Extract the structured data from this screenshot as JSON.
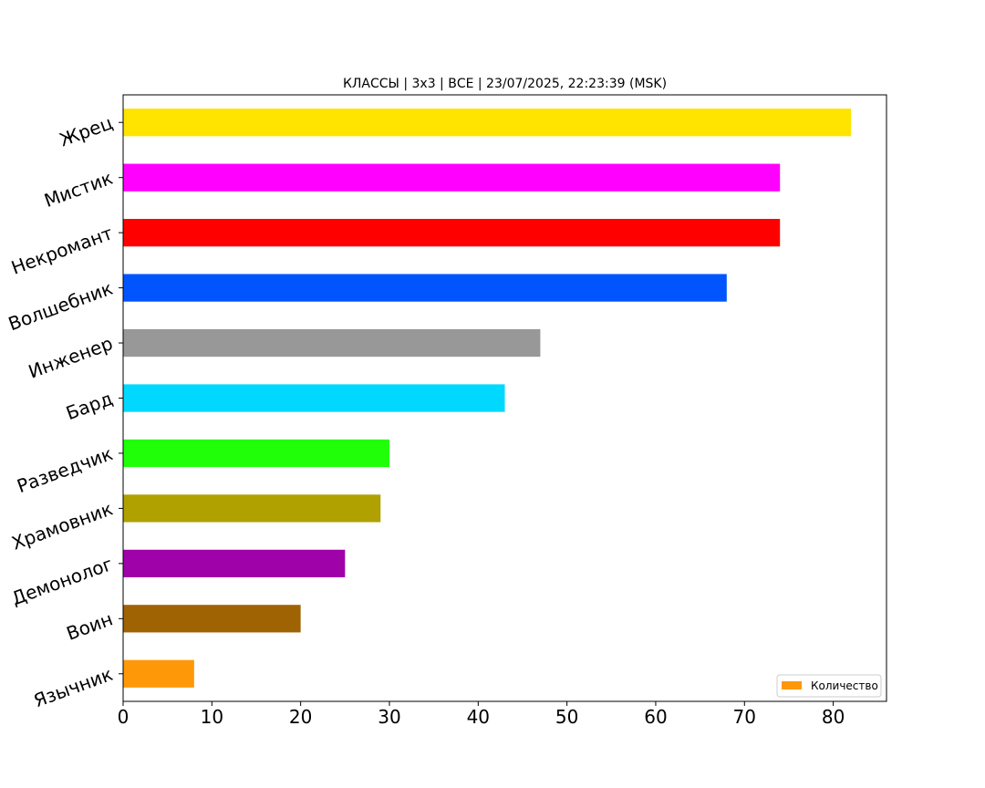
{
  "chart_data": {
    "type": "bar",
    "orientation": "horizontal",
    "title": "КЛАССЫ | 3x3 | ВСЕ | 23/07/2025, 22:23:39 (MSK)",
    "xlabel": "",
    "ylabel": "",
    "categories": [
      "Язычник",
      "Воин",
      "Демонолог",
      "Храмовник",
      "Разведчик",
      "Бард",
      "Инженер",
      "Волшебник",
      "Некромант",
      "Мистик",
      "Жрец"
    ],
    "values": [
      8,
      20,
      25,
      29,
      30,
      43,
      47,
      68,
      74,
      74,
      82
    ],
    "colors": [
      "#ff9808",
      "#a06304",
      "#a002aa",
      "#b0a000",
      "#20ff08",
      "#00d8ff",
      "#989898",
      "#0055ff",
      "#ff0000",
      "#ff00ff",
      "#ffe400"
    ],
    "xlim": [
      0,
      86
    ],
    "xticks": [
      0,
      10,
      20,
      30,
      40,
      50,
      60,
      70,
      80
    ],
    "grid": false,
    "legend": {
      "label": "Количество",
      "color": "#ff9808",
      "placement": "lower-right"
    }
  }
}
